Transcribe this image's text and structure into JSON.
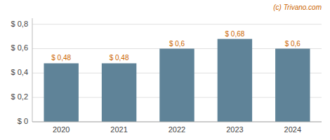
{
  "chart_data": {
    "type": "bar",
    "categories": [
      "2020",
      "2021",
      "2022",
      "2023",
      "2024"
    ],
    "values": [
      0.48,
      0.48,
      0.6,
      0.68,
      0.6
    ],
    "value_labels": [
      "$ 0,48",
      "$ 0,48",
      "$ 0,6",
      "$ 0,68",
      "$ 0,6"
    ],
    "data_labels": true,
    "color": "#5f8398",
    "ylim": [
      0,
      0.85
    ],
    "yticks": [
      {
        "value": 0,
        "label": "$ 0"
      },
      {
        "value": 0.2,
        "label": "$ 0,2"
      },
      {
        "value": 0.4,
        "label": "$ 0,4"
      },
      {
        "value": 0.6,
        "label": "$ 0,6"
      },
      {
        "value": 0.8,
        "label": "$ 0,8"
      }
    ],
    "grid": true,
    "annotations": [
      "(c) Trivano.com"
    ]
  }
}
